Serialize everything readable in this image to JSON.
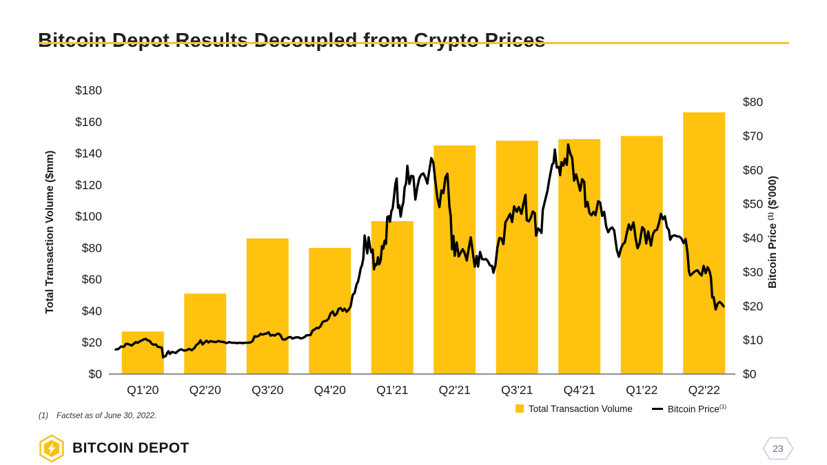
{
  "slide": {
    "title": "Bitcoin Depot Results Decoupled from Crypto Prices",
    "footnote": {
      "marker": "(1)",
      "text": "Factset as of June 30, 2022."
    },
    "page_number": "23",
    "brand": {
      "name": "BITCOIN DEPOT"
    }
  },
  "colors": {
    "bar": "#FFC20E",
    "line": "#000000",
    "title_underline": "#EFC437",
    "axis_line": "#7F7F7F",
    "page_badge_border": "#C9CBDA",
    "page_badge_text": "#5B6B94",
    "logo_yellow": "#F9C013"
  },
  "chart_data": {
    "type": "combo (bar + line)",
    "categories": [
      "Q1'20",
      "Q2'20",
      "Q3'20",
      "Q4'20",
      "Q1'21",
      "Q2'21",
      "Q3'21",
      "Q4'21",
      "Q1'22",
      "Q2'22"
    ],
    "bar_series": {
      "name": "Total Transaction Volume",
      "axis": "left",
      "unit": "$mm",
      "values": [
        27,
        51,
        86,
        80,
        97,
        145,
        148,
        149,
        151,
        166
      ]
    },
    "line_series": {
      "name": "Bitcoin Price",
      "footnote_ref": "(1)",
      "axis": "right",
      "unit": "$'000",
      "x_unit": "days since 2020-01-01 (ends 2022-06-30)",
      "points": [
        [
          0,
          7.2
        ],
        [
          4,
          7.4
        ],
        [
          8,
          8.1
        ],
        [
          12,
          8.0
        ],
        [
          15,
          8.8
        ],
        [
          18,
          8.9
        ],
        [
          21,
          8.6
        ],
        [
          24,
          8.4
        ],
        [
          27,
          8.9
        ],
        [
          30,
          9.4
        ],
        [
          33,
          9.2
        ],
        [
          36,
          9.6
        ],
        [
          39,
          9.9
        ],
        [
          42,
          10.2
        ],
        [
          45,
          10.3
        ],
        [
          48,
          9.9
        ],
        [
          51,
          9.7
        ],
        [
          54,
          8.9
        ],
        [
          57,
          8.6
        ],
        [
          60,
          8.7
        ],
        [
          63,
          8.0
        ],
        [
          66,
          7.9
        ],
        [
          69,
          7.8
        ],
        [
          71,
          4.9
        ],
        [
          73,
          5.2
        ],
        [
          75,
          5.3
        ],
        [
          77,
          6.2
        ],
        [
          79,
          6.7
        ],
        [
          81,
          5.9
        ],
        [
          84,
          6.5
        ],
        [
          87,
          6.4
        ],
        [
          90,
          6.2
        ],
        [
          94,
          6.9
        ],
        [
          98,
          7.3
        ],
        [
          102,
          6.9
        ],
        [
          106,
          7.0
        ],
        [
          110,
          7.4
        ],
        [
          114,
          7.0
        ],
        [
          118,
          7.7
        ],
        [
          121,
          8.6
        ],
        [
          124,
          9.0
        ],
        [
          127,
          9.9
        ],
        [
          130,
          8.7
        ],
        [
          133,
          9.3
        ],
        [
          136,
          9.8
        ],
        [
          139,
          9.3
        ],
        [
          142,
          9.7
        ],
        [
          146,
          9.5
        ],
        [
          150,
          9.4
        ],
        [
          154,
          9.7
        ],
        [
          158,
          9.5
        ],
        [
          162,
          9.4
        ],
        [
          166,
          9.1
        ],
        [
          170,
          9.4
        ],
        [
          174,
          9.2
        ],
        [
          178,
          9.2
        ],
        [
          182,
          9.1
        ],
        [
          186,
          9.2
        ],
        [
          190,
          9.1
        ],
        [
          194,
          9.2
        ],
        [
          198,
          9.2
        ],
        [
          202,
          9.3
        ],
        [
          205,
          9.7
        ],
        [
          208,
          11.1
        ],
        [
          211,
          11.0
        ],
        [
          214,
          11.2
        ],
        [
          217,
          11.8
        ],
        [
          220,
          11.6
        ],
        [
          223,
          11.8
        ],
        [
          226,
          11.9
        ],
        [
          229,
          12.3
        ],
        [
          232,
          11.3
        ],
        [
          235,
          11.5
        ],
        [
          238,
          11.3
        ],
        [
          241,
          11.7
        ],
        [
          244,
          11.9
        ],
        [
          247,
          11.4
        ],
        [
          250,
          10.2
        ],
        [
          253,
          10.1
        ],
        [
          256,
          10.4
        ],
        [
          259,
          10.8
        ],
        [
          262,
          10.9
        ],
        [
          265,
          10.4
        ],
        [
          268,
          10.7
        ],
        [
          271,
          10.8
        ],
        [
          274,
          10.8
        ],
        [
          277,
          10.5
        ],
        [
          280,
          10.6
        ],
        [
          283,
          10.9
        ],
        [
          286,
          11.4
        ],
        [
          289,
          11.4
        ],
        [
          292,
          11.5
        ],
        [
          295,
          12.8
        ],
        [
          298,
          13.1
        ],
        [
          301,
          13.6
        ],
        [
          304,
          13.5
        ],
        [
          307,
          14.1
        ],
        [
          310,
          15.3
        ],
        [
          313,
          15.6
        ],
        [
          316,
          15.7
        ],
        [
          319,
          16.3
        ],
        [
          322,
          17.8
        ],
        [
          325,
          18.4
        ],
        [
          328,
          17.2
        ],
        [
          331,
          17.7
        ],
        [
          334,
          19.2
        ],
        [
          337,
          19.4
        ],
        [
          340,
          18.6
        ],
        [
          343,
          19.2
        ],
        [
          346,
          18.3
        ],
        [
          349,
          18.9
        ],
        [
          352,
          19.9
        ],
        [
          355,
          23.2
        ],
        [
          358,
          23.9
        ],
        [
          361,
          26.4
        ],
        [
          363,
          27.1
        ],
        [
          365,
          28.9
        ],
        [
          367,
          31.0
        ],
        [
          369,
          32.0
        ],
        [
          371,
          34.0
        ],
        [
          373,
          40.7
        ],
        [
          375,
          38.2
        ],
        [
          377,
          35.5
        ],
        [
          379,
          40.2
        ],
        [
          381,
          37.3
        ],
        [
          383,
          35.8
        ],
        [
          385,
          36.6
        ],
        [
          387,
          30.8
        ],
        [
          389,
          32.3
        ],
        [
          391,
          32.1
        ],
        [
          393,
          34.3
        ],
        [
          395,
          32.3
        ],
        [
          397,
          33.5
        ],
        [
          399,
          37.6
        ],
        [
          401,
          36.9
        ],
        [
          403,
          39.2
        ],
        [
          405,
          38.3
        ],
        [
          407,
          46.2
        ],
        [
          409,
          46.4
        ],
        [
          411,
          44.8
        ],
        [
          413,
          47.9
        ],
        [
          415,
          48.7
        ],
        [
          417,
          52.1
        ],
        [
          419,
          55.9
        ],
        [
          421,
          57.5
        ],
        [
          423,
          48.9
        ],
        [
          425,
          49.6
        ],
        [
          427,
          46.3
        ],
        [
          429,
          48.9
        ],
        [
          431,
          50.5
        ],
        [
          433,
          54.9
        ],
        [
          435,
          56.0
        ],
        [
          437,
          61.2
        ],
        [
          440,
          55.9
        ],
        [
          443,
          58.3
        ],
        [
          446,
          58.1
        ],
        [
          449,
          51.3
        ],
        [
          452,
          55.0
        ],
        [
          455,
          57.6
        ],
        [
          458,
          58.7
        ],
        [
          461,
          59.0
        ],
        [
          464,
          57.8
        ],
        [
          467,
          56.0
        ],
        [
          470,
          60.0
        ],
        [
          473,
          63.5
        ],
        [
          476,
          62.1
        ],
        [
          479,
          56.5
        ],
        [
          482,
          51.7
        ],
        [
          485,
          49.1
        ],
        [
          488,
          54.0
        ],
        [
          491,
          53.2
        ],
        [
          494,
          57.8
        ],
        [
          497,
          58.9
        ],
        [
          500,
          49.4
        ],
        [
          502,
          46.4
        ],
        [
          504,
          36.7
        ],
        [
          506,
          40.6
        ],
        [
          508,
          34.8
        ],
        [
          511,
          38.7
        ],
        [
          514,
          34.6
        ],
        [
          517,
          35.7
        ],
        [
          520,
          36.7
        ],
        [
          523,
          35.5
        ],
        [
          526,
          33.4
        ],
        [
          529,
          37.0
        ],
        [
          532,
          40.2
        ],
        [
          535,
          35.8
        ],
        [
          538,
          31.6
        ],
        [
          541,
          34.7
        ],
        [
          543,
          31.6
        ],
        [
          546,
          35.9
        ],
        [
          549,
          33.8
        ],
        [
          552,
          33.7
        ],
        [
          555,
          33.8
        ],
        [
          558,
          33.1
        ],
        [
          561,
          31.9
        ],
        [
          564,
          31.8
        ],
        [
          566,
          29.8
        ],
        [
          569,
          32.1
        ],
        [
          572,
          37.3
        ],
        [
          575,
          40.0
        ],
        [
          578,
          39.9
        ],
        [
          581,
          38.2
        ],
        [
          584,
          44.6
        ],
        [
          587,
          45.6
        ],
        [
          591,
          47.1
        ],
        [
          594,
          44.7
        ],
        [
          597,
          49.3
        ],
        [
          601,
          47.7
        ],
        [
          604,
          49.1
        ],
        [
          608,
          47.1
        ],
        [
          611,
          50.0
        ],
        [
          614,
          52.7
        ],
        [
          616,
          45.2
        ],
        [
          619,
          44.9
        ],
        [
          622,
          46.0
        ],
        [
          625,
          47.8
        ],
        [
          628,
          47.3
        ],
        [
          630,
          40.7
        ],
        [
          633,
          42.8
        ],
        [
          636,
          42.2
        ],
        [
          638,
          41.5
        ],
        [
          640,
          48.2
        ],
        [
          644,
          51.5
        ],
        [
          647,
          53.9
        ],
        [
          650,
          57.5
        ],
        [
          654,
          61.6
        ],
        [
          656,
          62.0
        ],
        [
          658,
          66.0
        ],
        [
          661,
          60.7
        ],
        [
          664,
          60.9
        ],
        [
          666,
          58.5
        ],
        [
          668,
          62.3
        ],
        [
          671,
          61.3
        ],
        [
          673,
          63.3
        ],
        [
          676,
          61.5
        ],
        [
          678,
          67.5
        ],
        [
          681,
          64.9
        ],
        [
          684,
          63.6
        ],
        [
          687,
          56.9
        ],
        [
          690,
          58.7
        ],
        [
          693,
          56.3
        ],
        [
          696,
          53.9
        ],
        [
          699,
          57.3
        ],
        [
          702,
          56.5
        ],
        [
          704,
          49.2
        ],
        [
          707,
          50.6
        ],
        [
          710,
          47.3
        ],
        [
          713,
          46.7
        ],
        [
          716,
          47.7
        ],
        [
          719,
          46.7
        ],
        [
          723,
          50.8
        ],
        [
          726,
          50.4
        ],
        [
          729,
          46.5
        ],
        [
          732,
          47.7
        ],
        [
          735,
          43.4
        ],
        [
          738,
          41.7
        ],
        [
          741,
          42.7
        ],
        [
          744,
          43.1
        ],
        [
          747,
          42.2
        ],
        [
          751,
          36.5
        ],
        [
          754,
          34.5
        ],
        [
          757,
          36.8
        ],
        [
          760,
          38.2
        ],
        [
          763,
          38.7
        ],
        [
          766,
          41.5
        ],
        [
          769,
          44.0
        ],
        [
          772,
          42.4
        ],
        [
          776,
          44.6
        ],
        [
          779,
          40.0
        ],
        [
          782,
          37.0
        ],
        [
          785,
          38.3
        ],
        [
          789,
          43.2
        ],
        [
          792,
          42.5
        ],
        [
          795,
          38.4
        ],
        [
          798,
          41.9
        ],
        [
          802,
          37.8
        ],
        [
          805,
          41.1
        ],
        [
          808,
          42.2
        ],
        [
          811,
          42.4
        ],
        [
          814,
          44.3
        ],
        [
          817,
          47.1
        ],
        [
          820,
          45.5
        ],
        [
          823,
          46.4
        ],
        [
          826,
          43.2
        ],
        [
          829,
          42.3
        ],
        [
          831,
          39.5
        ],
        [
          834,
          40.6
        ],
        [
          838,
          40.8
        ],
        [
          841,
          40.5
        ],
        [
          845,
          40.4
        ],
        [
          848,
          39.8
        ],
        [
          851,
          38.5
        ],
        [
          854,
          39.7
        ],
        [
          857,
          35.5
        ],
        [
          859,
          30.1
        ],
        [
          861,
          29.0
        ],
        [
          863,
          29.3
        ],
        [
          866,
          29.9
        ],
        [
          869,
          30.3
        ],
        [
          872,
          30.5
        ],
        [
          875,
          29.6
        ],
        [
          878,
          29.0
        ],
        [
          881,
          31.8
        ],
        [
          884,
          29.7
        ],
        [
          887,
          31.4
        ],
        [
          890,
          30.2
        ],
        [
          892,
          28.4
        ],
        [
          894,
          22.5
        ],
        [
          896,
          22.6
        ],
        [
          899,
          19.0
        ],
        [
          902,
          20.7
        ],
        [
          905,
          21.2
        ],
        [
          908,
          20.7
        ],
        [
          911,
          19.9
        ]
      ]
    },
    "left_axis": {
      "title": "Total Transaction Volume ($mm)",
      "min": 0,
      "max": 180,
      "step": 20,
      "tick_prefix": "$"
    },
    "right_axis": {
      "title_main": "Bitcoin Price",
      "title_sup": "(1)",
      "title_unit": "($'000)",
      "min": 0,
      "max": 80,
      "step": 10,
      "tick_prefix": "$"
    },
    "legend": [
      {
        "label": "Total Transaction Volume",
        "sup": "",
        "marker": "square"
      },
      {
        "label": "Bitcoin Price",
        "sup": "(1)",
        "marker": "line"
      }
    ],
    "grid": false,
    "legend_position": "bottom-right"
  }
}
